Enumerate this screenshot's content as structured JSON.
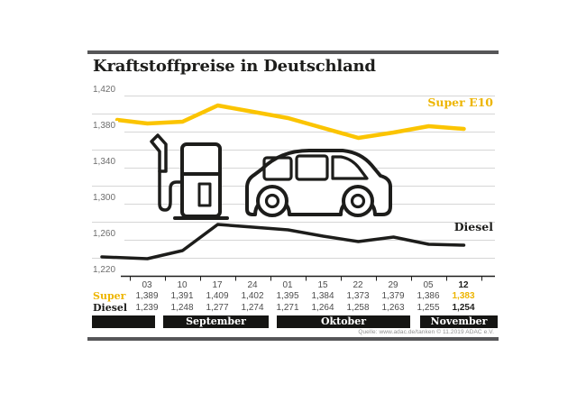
{
  "title": "Kraftstoffpreise in Deutschland",
  "source": "Quelle: www.adac.de/tanken   © 11.2019 ADAC e.V.",
  "labels": {
    "super_line": "Super E10",
    "diesel_line": "Diesel"
  },
  "colors": {
    "accent_yellow_line": "#FBC400",
    "accent_yellow_text": "#EDB500",
    "ink": "#1D1D1B",
    "frame_gray": "#565658",
    "grid_gray": "#D6D6D6",
    "value_gray": "#4D4D4D",
    "axis_label_gray": "#6E6E6E"
  },
  "chart_data": {
    "type": "line",
    "title": "Kraftstoffpreise in Deutschland",
    "categories": [
      "03",
      "10",
      "17",
      "24",
      "01",
      "15",
      "22",
      "29",
      "05",
      "12"
    ],
    "month_groups": [
      {
        "label": "September",
        "dates": [
          "03",
          "10",
          "17",
          "24"
        ]
      },
      {
        "label": "Oktober",
        "dates": [
          "01",
          "15",
          "22",
          "29"
        ]
      },
      {
        "label": "November",
        "dates": [
          "05",
          "12"
        ]
      }
    ],
    "series": [
      {
        "name": "Super",
        "chart_label": "Super E10",
        "color": "#FBC400",
        "values": [
          1.389,
          1.391,
          1.409,
          1.402,
          1.395,
          1.384,
          1.373,
          1.379,
          1.386,
          1.383
        ]
      },
      {
        "name": "Diesel",
        "chart_label": "Diesel",
        "color": "#1D1D1B",
        "values": [
          1.239,
          1.248,
          1.277,
          1.274,
          1.271,
          1.264,
          1.258,
          1.263,
          1.255,
          1.254
        ]
      }
    ],
    "ylim": [
      1.22,
      1.42
    ],
    "ytick_step": 0.02,
    "yticks": [
      {
        "v": 1.42,
        "label": "1,420"
      },
      {
        "v": 1.38,
        "label": "1,380"
      },
      {
        "v": 1.34,
        "label": "1,340"
      },
      {
        "v": 1.3,
        "label": "1,300"
      },
      {
        "v": 1.26,
        "label": "1,260"
      },
      {
        "v": 1.22,
        "label": "1,220"
      }
    ],
    "grid": true,
    "legend_position": "inline-right"
  },
  "table": {
    "row_labels": {
      "super": "Super",
      "diesel": "Diesel"
    },
    "dates": [
      "03",
      "10",
      "17",
      "24",
      "01",
      "15",
      "22",
      "29",
      "05",
      "12"
    ],
    "super_values": [
      "1,389",
      "1,391",
      "1,409",
      "1,402",
      "1,395",
      "1,384",
      "1,373",
      "1,379",
      "1,386",
      "1,383"
    ],
    "diesel_values": [
      "1,239",
      "1,248",
      "1,277",
      "1,274",
      "1,271",
      "1,264",
      "1,258",
      "1,263",
      "1,255",
      "1,254"
    ],
    "months": [
      "September",
      "Oktober",
      "November"
    ]
  }
}
